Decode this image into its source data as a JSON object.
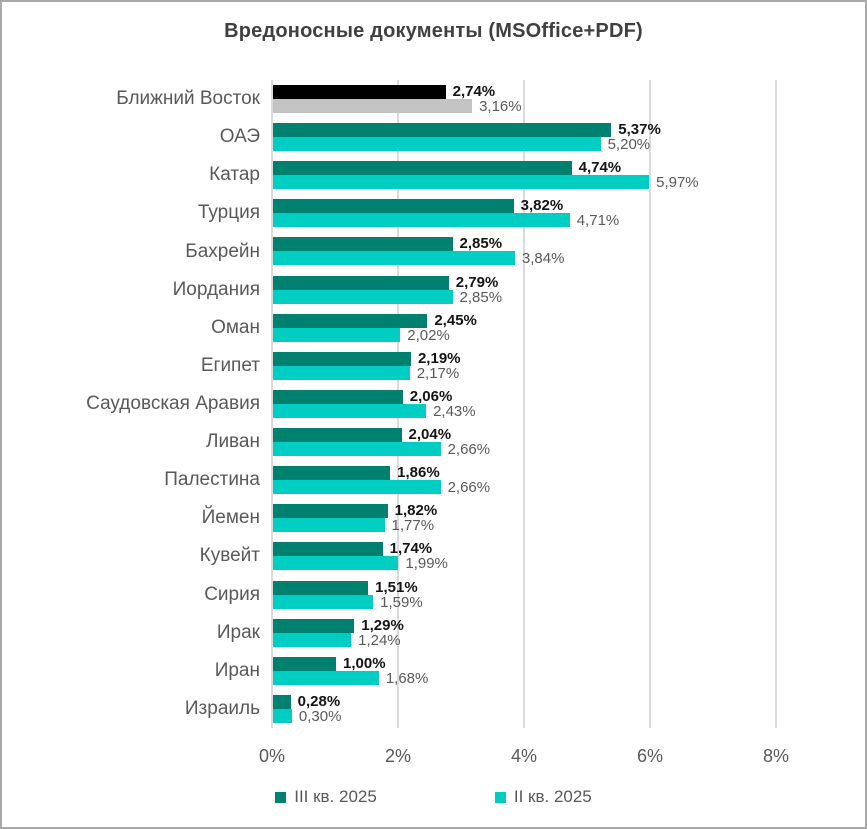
{
  "chart_data": {
    "type": "bar",
    "orientation": "horizontal",
    "title": "Вредоносные документы (MSOffice+PDF)",
    "categories": [
      "Ближний Восток",
      "ОАЭ",
      "Катар",
      "Турция",
      "Бахрейн",
      "Иордания",
      "Оман",
      "Египет",
      "Саудовская Аравия",
      "Ливан",
      "Палестина",
      "Йемен",
      "Кувейт",
      "Сирия",
      "Ирак",
      "Иран",
      "Израиль"
    ],
    "series": [
      {
        "name": "III кв. 2025",
        "color": "#008170",
        "values": [
          2.74,
          5.37,
          4.74,
          3.82,
          2.85,
          2.79,
          2.45,
          2.19,
          2.06,
          2.04,
          1.86,
          1.82,
          1.74,
          1.51,
          1.29,
          1.0,
          0.28
        ],
        "labels": [
          "2,74%",
          "5,37%",
          "4,74%",
          "3,82%",
          "2,85%",
          "2,79%",
          "2,45%",
          "2,19%",
          "2,06%",
          "2,04%",
          "1,86%",
          "1,82%",
          "1,74%",
          "1,51%",
          "1,29%",
          "1,00%",
          "0,28%"
        ]
      },
      {
        "name": "II кв. 2025",
        "color": "#00CEC2",
        "values": [
          3.16,
          5.2,
          5.97,
          4.71,
          3.84,
          2.85,
          2.02,
          2.17,
          2.43,
          2.66,
          2.66,
          1.77,
          1.99,
          1.59,
          1.24,
          1.68,
          0.3
        ],
        "labels": [
          "3,16%",
          "5,20%",
          "5,97%",
          "4,71%",
          "3,84%",
          "2,85%",
          "2,02%",
          "2,17%",
          "2,43%",
          "2,66%",
          "2,66%",
          "1,77%",
          "1,99%",
          "1,59%",
          "1,24%",
          "1,68%",
          "0,30%"
        ]
      }
    ],
    "highlight_row": {
      "index": 0,
      "category": "Ближний Восток",
      "colors": [
        "#000000",
        "#C3C3C3"
      ]
    },
    "xlim": [
      0,
      8
    ],
    "x_ticks": [
      "0%",
      "2%",
      "4%",
      "6%",
      "8%"
    ],
    "grid": true,
    "legend_position": "bottom",
    "colors": {
      "series_1": "#008170",
      "series_2": "#00CEC2",
      "highlight_dark": "#000000",
      "highlight_light": "#C3C3C3",
      "gridline": "#DADADA",
      "title_text": "#404040",
      "label_text": "#595959",
      "value_text_bold": "#141414"
    }
  }
}
